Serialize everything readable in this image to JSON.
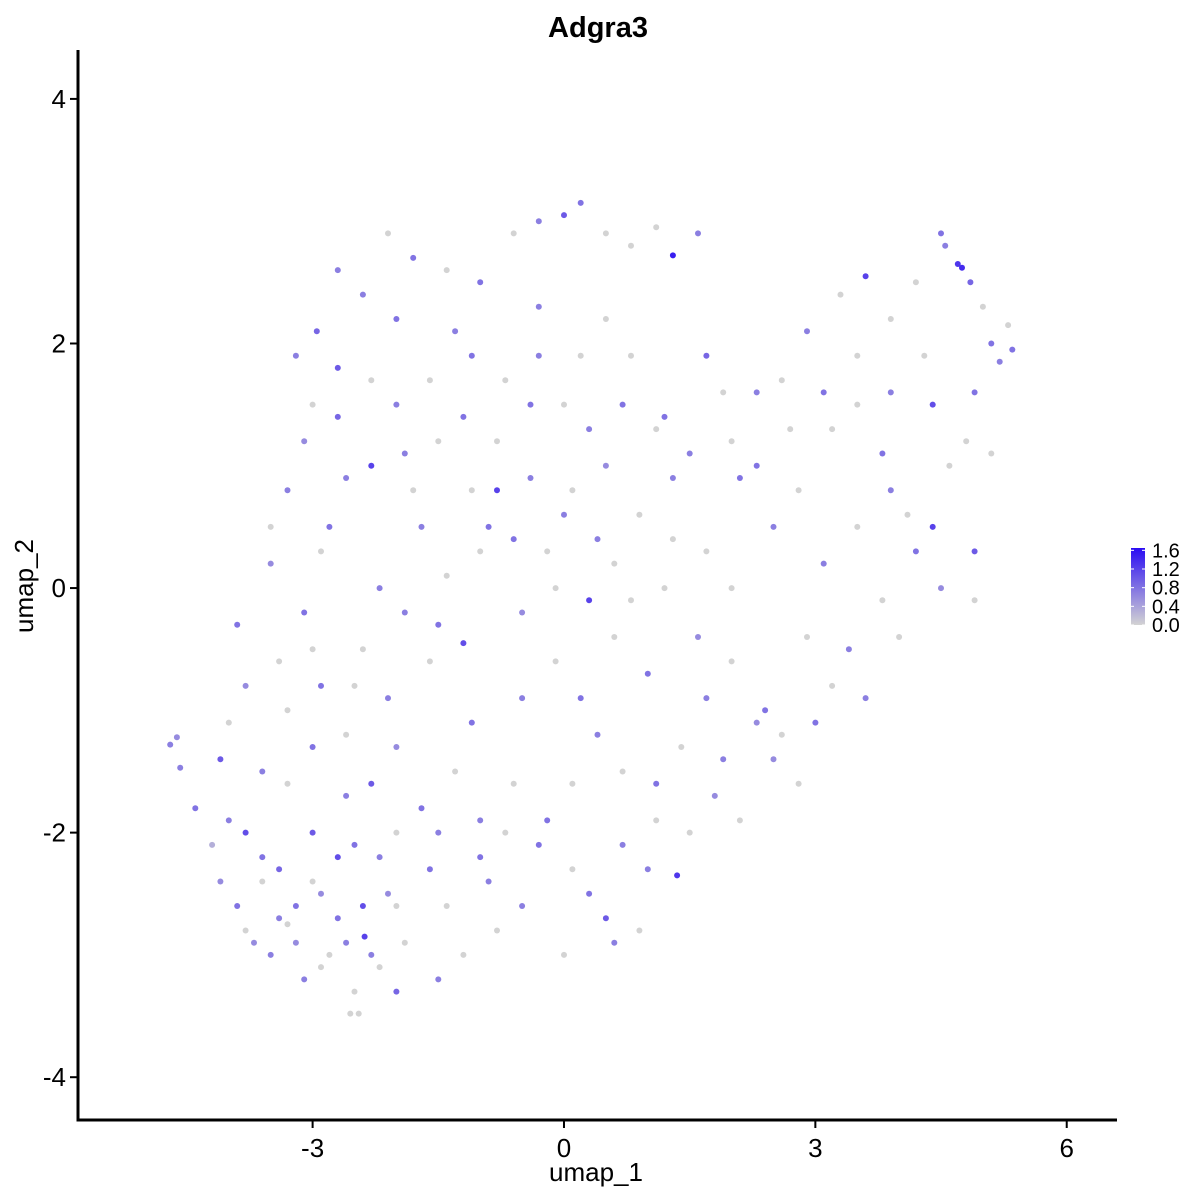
{
  "chart_data": {
    "type": "scatter",
    "title": "Adgra3",
    "xlabel": "umap_1",
    "ylabel": "umap_2",
    "xlim": [
      -5.8,
      6.6
    ],
    "ylim": [
      -4.35,
      4.4
    ],
    "x_ticks": [
      -3,
      0,
      3,
      6
    ],
    "x_tick_labels": [
      "-3",
      "0",
      "3",
      "6"
    ],
    "y_ticks": [
      -4,
      -2,
      0,
      2,
      4
    ],
    "y_tick_labels": [
      "-4",
      "-2",
      "0",
      "2",
      "4"
    ],
    "grid": false,
    "legend_position": "right",
    "color_scale": {
      "low": "#d3d3d3",
      "high": "#2a0cf3",
      "min": 0.0,
      "max": 1.65,
      "breaks": [
        1.6,
        1.2,
        0.8,
        0.4,
        0.0
      ],
      "labels": [
        "1.6",
        "1.2",
        "0.8",
        "0.4",
        "0.0"
      ]
    },
    "points": [
      [
        -4.7,
        -1.28,
        0.7
      ],
      [
        -4.62,
        -1.22,
        0.6
      ],
      [
        -4.58,
        -1.47,
        0.7
      ],
      [
        -4.4,
        -1.8,
        0.8
      ],
      [
        -4.2,
        -2.1,
        0.3
      ],
      [
        -4.1,
        -1.4,
        1.0
      ],
      [
        -4.0,
        -1.9,
        0.7
      ],
      [
        -3.9,
        -2.6,
        0.8
      ],
      [
        -3.8,
        -2.0,
        1.1
      ],
      [
        -3.7,
        -2.9,
        0.6
      ],
      [
        -3.6,
        -2.4,
        0.0
      ],
      [
        -3.5,
        -3.0,
        0.7
      ],
      [
        -3.4,
        -2.3,
        0.9
      ],
      [
        -3.3,
        -2.75,
        0.0
      ],
      [
        -3.2,
        -2.6,
        0.8
      ],
      [
        -3.1,
        -3.2,
        0.7
      ],
      [
        -3.0,
        -2.0,
        1.0
      ],
      [
        -2.9,
        -2.5,
        0.6
      ],
      [
        -2.8,
        -3.0,
        0.0
      ],
      [
        -2.7,
        -2.2,
        1.1
      ],
      [
        -2.6,
        -2.9,
        0.7
      ],
      [
        -2.5,
        -3.3,
        0.0
      ],
      [
        -2.4,
        -2.6,
        1.1
      ],
      [
        -2.3,
        -3.0,
        0.7
      ],
      [
        -2.2,
        -3.1,
        0.0
      ],
      [
        -2.1,
        -2.5,
        0.6
      ],
      [
        -2.0,
        -3.3,
        0.9
      ],
      [
        -2.45,
        -3.48,
        0.0
      ],
      [
        -2.55,
        -3.48,
        0.0
      ],
      [
        -2.38,
        -2.85,
        1.2
      ],
      [
        -1.5,
        -3.2,
        0.7
      ],
      [
        -1.4,
        -2.6,
        0.0
      ],
      [
        -1.0,
        -2.2,
        0.8
      ],
      [
        -0.8,
        -2.8,
        0.0
      ],
      [
        -0.5,
        -2.6,
        0.7
      ],
      [
        0.0,
        -3.0,
        0.0
      ],
      [
        0.3,
        -2.5,
        0.8
      ],
      [
        0.5,
        -2.7,
        1.0
      ],
      [
        0.6,
        -2.9,
        0.7
      ],
      [
        0.9,
        -2.8,
        0.0
      ],
      [
        1.0,
        -2.3,
        0.7
      ],
      [
        1.35,
        -2.35,
        1.3
      ],
      [
        1.5,
        -2.0,
        0.0
      ],
      [
        -3.9,
        -0.3,
        0.8
      ],
      [
        -3.5,
        0.2,
        0.6
      ],
      [
        -3.0,
        -0.5,
        0.0
      ],
      [
        -2.8,
        0.5,
        0.8
      ],
      [
        -2.5,
        -0.8,
        0.0
      ],
      [
        -2.2,
        0.0,
        0.7
      ],
      [
        -2.0,
        -1.3,
        0.6
      ],
      [
        -1.8,
        0.8,
        0.0
      ],
      [
        -1.5,
        -0.3,
        0.8
      ],
      [
        -1.2,
        -0.45,
        1.1
      ],
      [
        -1.0,
        0.3,
        0.0
      ],
      [
        -0.8,
        0.8,
        1.2
      ],
      [
        -0.5,
        -0.2,
        0.6
      ],
      [
        -0.2,
        0.3,
        0.0
      ],
      [
        0.0,
        0.6,
        0.7
      ],
      [
        0.3,
        -0.1,
        1.2
      ],
      [
        0.6,
        0.2,
        0.0
      ],
      [
        1.0,
        -0.7,
        0.8
      ],
      [
        1.3,
        0.4,
        0.0
      ],
      [
        1.7,
        -0.9,
        0.7
      ],
      [
        2.0,
        0.0,
        0.0
      ],
      [
        2.3,
        -1.1,
        0.6
      ],
      [
        2.6,
        -1.2,
        0.0
      ],
      [
        3.0,
        -1.1,
        0.8
      ],
      [
        3.4,
        -0.5,
        0.7
      ],
      [
        3.8,
        -0.1,
        0.0
      ],
      [
        4.2,
        0.3,
        0.8
      ],
      [
        4.5,
        0.0,
        0.6
      ],
      [
        4.9,
        -0.1,
        0.0
      ],
      [
        4.9,
        0.3,
        1.0
      ],
      [
        -3.2,
        1.9,
        0.7
      ],
      [
        -2.95,
        2.1,
        0.9
      ],
      [
        -2.7,
        1.8,
        1.0
      ],
      [
        -2.4,
        2.4,
        0.7
      ],
      [
        -2.1,
        2.9,
        0.0
      ],
      [
        -1.8,
        2.7,
        0.8
      ],
      [
        -1.4,
        2.6,
        0.0
      ],
      [
        -1.0,
        2.5,
        0.8
      ],
      [
        -0.6,
        2.9,
        0.0
      ],
      [
        -0.3,
        3.0,
        0.7
      ],
      [
        0.0,
        3.05,
        1.0
      ],
      [
        0.2,
        3.15,
        0.8
      ],
      [
        0.5,
        2.9,
        0.0
      ],
      [
        0.8,
        2.8,
        0.0
      ],
      [
        1.1,
        2.95,
        0.0
      ],
      [
        1.3,
        2.72,
        1.5
      ],
      [
        1.6,
        2.9,
        0.7
      ],
      [
        -3.1,
        1.2,
        0.6
      ],
      [
        -2.7,
        1.4,
        0.9
      ],
      [
        -2.3,
        1.0,
        1.2
      ],
      [
        -2.0,
        1.5,
        0.7
      ],
      [
        -1.6,
        1.7,
        0.0
      ],
      [
        -1.2,
        1.4,
        0.8
      ],
      [
        -0.8,
        1.2,
        0.0
      ],
      [
        -0.4,
        1.5,
        0.8
      ],
      [
        0.0,
        1.5,
        0.0
      ],
      [
        0.3,
        1.3,
        0.7
      ],
      [
        0.8,
        1.9,
        0.0
      ],
      [
        1.2,
        1.4,
        0.8
      ],
      [
        1.7,
        1.9,
        0.9
      ],
      [
        2.0,
        1.2,
        0.0
      ],
      [
        2.3,
        1.0,
        0.8
      ],
      [
        2.6,
        1.7,
        0.0
      ],
      [
        2.9,
        2.1,
        0.7
      ],
      [
        3.3,
        2.4,
        0.0
      ],
      [
        3.6,
        2.55,
        1.2
      ],
      [
        3.9,
        2.2,
        0.0
      ],
      [
        4.2,
        2.5,
        0.0
      ],
      [
        4.5,
        2.9,
        0.8
      ],
      [
        4.55,
        2.8,
        0.7
      ],
      [
        4.75,
        2.62,
        1.4
      ],
      [
        4.7,
        2.65,
        1.3
      ],
      [
        4.85,
        2.5,
        0.9
      ],
      [
        5.0,
        2.3,
        0.0
      ],
      [
        5.1,
        2.0,
        0.8
      ],
      [
        5.2,
        1.85,
        0.7
      ],
      [
        5.3,
        2.15,
        0.0
      ],
      [
        5.35,
        1.95,
        0.8
      ],
      [
        4.4,
        1.5,
        1.1
      ],
      [
        4.8,
        1.2,
        0.0
      ],
      [
        4.4,
        0.5,
        1.2
      ],
      [
        4.1,
        0.6,
        0.0
      ],
      [
        3.8,
        1.1,
        0.8
      ],
      [
        3.5,
        1.5,
        0.0
      ],
      [
        3.2,
        1.3,
        0.0
      ],
      [
        2.8,
        0.8,
        0.0
      ],
      [
        2.5,
        0.5,
        0.7
      ],
      [
        2.1,
        0.9,
        0.8
      ],
      [
        1.7,
        0.3,
        0.0
      ],
      [
        1.3,
        0.9,
        0.7
      ],
      [
        0.9,
        0.6,
        0.0
      ],
      [
        0.5,
        1.0,
        0.6
      ],
      [
        0.1,
        0.8,
        0.0
      ],
      [
        -0.4,
        0.9,
        0.7
      ],
      [
        -0.9,
        0.5,
        0.8
      ],
      [
        -1.4,
        0.1,
        0.0
      ],
      [
        -1.9,
        -0.2,
        0.7
      ],
      [
        -2.4,
        -0.5,
        0.0
      ],
      [
        -2.9,
        -0.8,
        0.8
      ],
      [
        -3.3,
        -1.0,
        0.0
      ],
      [
        -3.6,
        -1.5,
        0.7
      ],
      [
        -3.3,
        -1.6,
        0.0
      ],
      [
        -3.0,
        -1.3,
        0.8
      ],
      [
        -2.6,
        -1.7,
        0.7
      ],
      [
        -2.3,
        -1.6,
        1.0
      ],
      [
        -2.0,
        -2.0,
        0.0
      ],
      [
        -1.7,
        -1.8,
        0.8
      ],
      [
        -1.3,
        -1.5,
        0.0
      ],
      [
        -1.0,
        -1.9,
        0.7
      ],
      [
        -0.6,
        -1.6,
        0.0
      ],
      [
        -0.2,
        -1.9,
        0.8
      ],
      [
        0.1,
        -1.6,
        0.0
      ],
      [
        0.4,
        -1.2,
        0.7
      ],
      [
        0.7,
        -1.5,
        0.0
      ],
      [
        1.1,
        -1.6,
        0.8
      ],
      [
        1.4,
        -1.3,
        0.0
      ],
      [
        1.9,
        -1.4,
        0.7
      ],
      [
        2.1,
        -1.9,
        0.0
      ],
      [
        2.5,
        -1.4,
        0.6
      ],
      [
        2.8,
        -1.6,
        0.0
      ],
      [
        3.2,
        -0.8,
        0.0
      ],
      [
        3.6,
        -0.9,
        0.7
      ],
      [
        4.0,
        -0.4,
        0.0
      ],
      [
        -0.5,
        -0.9,
        0.7
      ],
      [
        -0.1,
        -0.6,
        0.0
      ],
      [
        0.2,
        -0.9,
        0.8
      ],
      [
        0.6,
        -0.4,
        0.0
      ],
      [
        -1.1,
        -1.1,
        0.8
      ],
      [
        -1.6,
        -0.6,
        0.0
      ],
      [
        -2.1,
        -0.9,
        0.7
      ],
      [
        -2.6,
        -1.2,
        0.0
      ],
      [
        -0.3,
        2.3,
        0.7
      ],
      [
        0.5,
        2.2,
        0.0
      ],
      [
        -1.3,
        2.1,
        0.7
      ],
      [
        -2.0,
        2.2,
        0.8
      ],
      [
        -2.7,
        2.6,
        0.7
      ],
      [
        -3.0,
        1.5,
        0.0
      ],
      [
        -3.3,
        0.8,
        0.7
      ],
      [
        -3.5,
        0.5,
        0.0
      ],
      [
        -3.8,
        -0.8,
        0.6
      ],
      [
        -4.0,
        -1.1,
        0.0
      ],
      [
        -3.6,
        -2.2,
        0.8
      ],
      [
        -3.2,
        -2.9,
        0.6
      ],
      [
        -2.9,
        -3.1,
        0.0
      ],
      [
        -2.7,
        -2.7,
        0.8
      ],
      [
        -2.2,
        -2.2,
        0.7
      ],
      [
        -1.9,
        -2.9,
        0.0
      ],
      [
        -1.6,
        -2.3,
        0.8
      ],
      [
        -1.2,
        -3.0,
        0.0
      ],
      [
        -0.9,
        -2.4,
        0.7
      ],
      [
        -0.3,
        -2.1,
        0.8
      ],
      [
        0.1,
        -2.3,
        0.0
      ],
      [
        0.7,
        -2.1,
        0.7
      ],
      [
        1.1,
        -1.9,
        0.0
      ],
      [
        1.8,
        -1.7,
        0.6
      ],
      [
        2.4,
        -1.0,
        0.8
      ],
      [
        2.9,
        -0.4,
        0.0
      ],
      [
        3.1,
        0.2,
        0.7
      ],
      [
        3.5,
        0.5,
        0.0
      ],
      [
        3.9,
        0.8,
        0.7
      ],
      [
        4.6,
        1.0,
        0.0
      ],
      [
        4.9,
        1.6,
        0.8
      ],
      [
        5.1,
        1.1,
        0.0
      ],
      [
        4.3,
        1.9,
        0.0
      ],
      [
        3.9,
        1.6,
        0.7
      ],
      [
        3.5,
        1.9,
        0.0
      ],
      [
        3.1,
        1.6,
        0.8
      ],
      [
        2.7,
        1.3,
        0.0
      ],
      [
        2.3,
        1.6,
        0.7
      ],
      [
        1.9,
        1.6,
        0.0
      ],
      [
        1.5,
        1.1,
        0.7
      ],
      [
        1.1,
        1.3,
        0.0
      ],
      [
        0.7,
        1.5,
        0.8
      ],
      [
        0.2,
        1.9,
        0.0
      ],
      [
        -0.3,
        1.9,
        0.7
      ],
      [
        -0.7,
        1.7,
        0.0
      ],
      [
        -1.1,
        1.9,
        0.8
      ],
      [
        -1.5,
        1.2,
        0.0
      ],
      [
        -1.9,
        1.1,
        0.7
      ],
      [
        -2.3,
        1.7,
        0.0
      ],
      [
        -2.6,
        0.9,
        0.7
      ],
      [
        -2.9,
        0.3,
        0.0
      ],
      [
        -3.1,
        -0.2,
        0.8
      ],
      [
        -3.4,
        -0.6,
        0.0
      ],
      [
        -1.7,
        0.5,
        0.7
      ],
      [
        -1.1,
        0.8,
        0.0
      ],
      [
        -0.6,
        0.4,
        0.8
      ],
      [
        -0.1,
        0.0,
        0.0
      ],
      [
        0.4,
        0.4,
        0.7
      ],
      [
        0.8,
        -0.1,
        0.0
      ],
      [
        1.2,
        0.0,
        0.0
      ],
      [
        1.6,
        -0.4,
        0.6
      ],
      [
        2.0,
        -0.6,
        0.0
      ],
      [
        -4.1,
        -2.4,
        0.6
      ],
      [
        -3.8,
        -2.8,
        0.0
      ],
      [
        -3.4,
        -2.7,
        0.7
      ],
      [
        -3.0,
        -2.4,
        0.0
      ],
      [
        -2.5,
        -2.1,
        0.8
      ],
      [
        -2.0,
        -2.6,
        0.0
      ],
      [
        -1.5,
        -2.0,
        0.7
      ],
      [
        -0.7,
        -2.0,
        0.0
      ]
    ]
  }
}
